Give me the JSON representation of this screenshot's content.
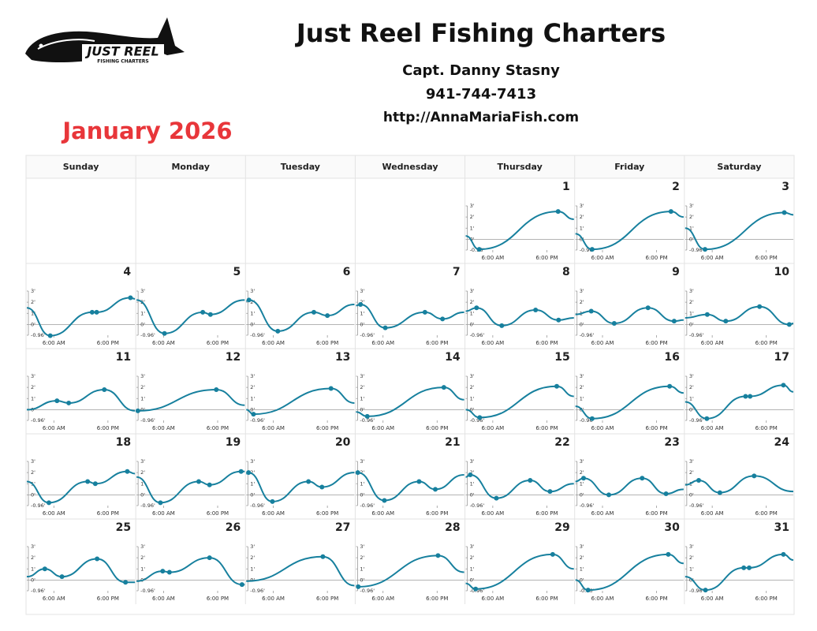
{
  "header": {
    "title": "Just Reel Fishing Charters",
    "captain": "Capt. Danny Stasny",
    "phone": "941-744-7413",
    "url": "http://AnnaMariaFish.com"
  },
  "logo": {
    "name": "JUST REEL",
    "tagline": "FISHING CHARTERS"
  },
  "calendar": {
    "month": "January 2026",
    "weekdays": [
      "Sunday",
      "Monday",
      "Tuesday",
      "Wednesday",
      "Thursday",
      "Friday",
      "Saturday"
    ],
    "tide_chart": {
      "ylim": [
        -0.96,
        3
      ],
      "yticks": [
        {
          "value": 3,
          "label": "3'"
        },
        {
          "value": 2,
          "label": "2'"
        },
        {
          "value": 1,
          "label": "1'"
        },
        {
          "value": 0,
          "label": "0'"
        },
        {
          "value": -0.96,
          "label": "-0.96'"
        }
      ],
      "xlim": [
        0,
        24
      ],
      "xticks": [
        {
          "value": 6,
          "label": "6:00 AM"
        },
        {
          "value": 18,
          "label": "6:00 PM"
        }
      ],
      "color": "#17809e"
    },
    "weeks": [
      [
        null,
        null,
        null,
        null,
        {
          "day": 1,
          "start": 0.3,
          "tides": [
            [
              3.0,
              -0.9
            ],
            [
              20.5,
              2.5
            ]
          ],
          "end": 1.8
        },
        {
          "day": 2,
          "start": 0.5,
          "tides": [
            [
              3.7,
              -0.9
            ],
            [
              21.2,
              2.5
            ]
          ],
          "end": 2.0
        },
        {
          "day": 3,
          "start": 1.0,
          "tides": [
            [
              4.4,
              -0.9
            ],
            [
              22.0,
              2.4
            ]
          ],
          "end": 2.2
        }
      ],
      [
        {
          "day": 4,
          "start": 1.5,
          "tides": [
            [
              5.2,
              -1.0
            ],
            [
              14.5,
              1.1
            ],
            [
              15.5,
              1.1
            ],
            [
              23.0,
              2.4
            ]
          ],
          "end": 2.3
        },
        {
          "day": 5,
          "start": 2.2,
          "tides": [
            [
              6.2,
              -0.8
            ],
            [
              14.7,
              1.1
            ],
            [
              16.4,
              0.9
            ]
          ],
          "end": 2.2
        },
        {
          "day": 6,
          "start": 2.1,
          "tides": [
            [
              0.6,
              2.2
            ],
            [
              7.0,
              -0.6
            ],
            [
              15.0,
              1.1
            ],
            [
              18.0,
              0.8
            ]
          ],
          "end": 1.8
        },
        {
          "day": 7,
          "start": 1.7,
          "tides": [
            [
              1.0,
              1.8
            ],
            [
              6.5,
              -0.3
            ],
            [
              15.3,
              1.1
            ],
            [
              19.2,
              0.5
            ]
          ],
          "end": 1.1
        },
        {
          "day": 8,
          "start": 1.2,
          "tides": [
            [
              2.4,
              1.5
            ],
            [
              8.0,
              -0.1
            ],
            [
              15.5,
              1.3
            ],
            [
              20.6,
              0.4
            ]
          ],
          "end": 0.6
        },
        {
          "day": 9,
          "start": 0.9,
          "tides": [
            [
              3.5,
              1.2
            ],
            [
              8.6,
              0.1
            ],
            [
              16.1,
              1.5
            ],
            [
              21.9,
              0.3
            ]
          ],
          "end": 0.4
        },
        {
          "day": 10,
          "start": 0.6,
          "tides": [
            [
              4.9,
              0.9
            ],
            [
              9.0,
              0.3
            ],
            [
              16.5,
              1.6
            ],
            [
              23.1,
              0.0
            ]
          ],
          "end": 0.1
        }
      ],
      [
        {
          "day": 11,
          "start": 0.0,
          "tides": [
            [
              6.7,
              0.8
            ],
            [
              9.3,
              0.6
            ],
            [
              17.2,
              1.8
            ]
          ],
          "end": -0.1
        },
        {
          "day": 12,
          "start": 0.0,
          "tides": [
            [
              0.3,
              -0.1
            ],
            [
              17.7,
              1.8
            ]
          ],
          "end": 0.4
        },
        {
          "day": 13,
          "start": 0.0,
          "tides": [
            [
              1.6,
              -0.4
            ],
            [
              18.8,
              1.9
            ]
          ],
          "end": 0.6
        },
        {
          "day": 14,
          "start": -0.2,
          "tides": [
            [
              2.5,
              -0.6
            ],
            [
              19.5,
              2.0
            ]
          ],
          "end": 0.9
        },
        {
          "day": 15,
          "start": 0.0,
          "tides": [
            [
              3.1,
              -0.7
            ],
            [
              20.2,
              2.1
            ]
          ],
          "end": 1.2
        },
        {
          "day": 16,
          "start": 0.3,
          "tides": [
            [
              3.7,
              -0.8
            ],
            [
              20.9,
              2.1
            ]
          ],
          "end": 1.5
        },
        {
          "day": 17,
          "start": 0.7,
          "tides": [
            [
              4.8,
              -0.8
            ],
            [
              13.4,
              1.2
            ],
            [
              14.4,
              1.2
            ],
            [
              21.8,
              2.2
            ]
          ],
          "end": 1.6
        }
      ],
      [
        {
          "day": 18,
          "start": 1.2,
          "tides": [
            [
              4.9,
              -0.7
            ],
            [
              13.5,
              1.2
            ],
            [
              15.2,
              1.0
            ],
            [
              22.3,
              2.1
            ]
          ],
          "end": 1.9
        },
        {
          "day": 19,
          "start": 1.6,
          "tides": [
            [
              5.3,
              -0.7
            ],
            [
              13.8,
              1.2
            ],
            [
              16.2,
              0.9
            ],
            [
              23.2,
              2.1
            ]
          ],
          "end": 2.1
        },
        {
          "day": 20,
          "start": 1.9,
          "tides": [
            [
              0.5,
              2.0
            ],
            [
              5.8,
              -0.6
            ],
            [
              13.8,
              1.2
            ],
            [
              16.8,
              0.7
            ]
          ],
          "end": 2.0
        },
        {
          "day": 21,
          "start": 1.9,
          "tides": [
            [
              0.4,
              2.0
            ],
            [
              6.3,
              -0.5
            ],
            [
              14.0,
              1.2
            ],
            [
              17.6,
              0.5
            ]
          ],
          "end": 1.8
        },
        {
          "day": 22,
          "start": 1.6,
          "tides": [
            [
              1.0,
              1.8
            ],
            [
              6.8,
              -0.3
            ],
            [
              14.3,
              1.3
            ],
            [
              18.7,
              0.3
            ]
          ],
          "end": 1.0
        },
        {
          "day": 23,
          "start": 1.2,
          "tides": [
            [
              1.8,
              1.5
            ],
            [
              7.4,
              0.0
            ],
            [
              14.8,
              1.5
            ],
            [
              20.1,
              0.1
            ]
          ],
          "end": 0.5
        },
        {
          "day": 24,
          "start": 0.9,
          "tides": [
            [
              3.0,
              1.3
            ],
            [
              7.7,
              0.2
            ],
            [
              15.3,
              1.7
            ]
          ],
          "end": 0.3
        }
      ],
      [
        {
          "day": 25,
          "start": 0.3,
          "tides": [
            [
              4.0,
              1.0
            ],
            [
              7.8,
              0.3
            ],
            [
              15.6,
              1.9
            ],
            [
              21.9,
              -0.2
            ]
          ],
          "end": -0.2
        },
        {
          "day": 26,
          "start": -0.1,
          "tides": [
            [
              5.8,
              0.8
            ],
            [
              7.3,
              0.7
            ],
            [
              16.2,
              2.0
            ],
            [
              23.4,
              -0.4
            ]
          ],
          "end": -0.4
        },
        {
          "day": 27,
          "start": -0.1,
          "tides": [
            [
              17.0,
              2.1
            ]
          ],
          "end": -0.5
        },
        {
          "day": 28,
          "start": -0.5,
          "tides": [
            [
              0.5,
              -0.6
            ],
            [
              18.2,
              2.2
            ]
          ],
          "end": 0.7
        },
        {
          "day": 29,
          "start": -0.3,
          "tides": [
            [
              2.2,
              -0.8
            ],
            [
              19.3,
              2.3
            ]
          ],
          "end": 1.0
        },
        {
          "day": 30,
          "start": 0.0,
          "tides": [
            [
              2.8,
              -0.9
            ],
            [
              20.6,
              2.3
            ]
          ],
          "end": 1.5
        },
        {
          "day": 31,
          "start": 0.3,
          "tides": [
            [
              4.5,
              -0.9
            ],
            [
              13.0,
              1.1
            ],
            [
              14.2,
              1.1
            ],
            [
              21.8,
              2.3
            ]
          ],
          "end": 1.8
        }
      ]
    ]
  }
}
